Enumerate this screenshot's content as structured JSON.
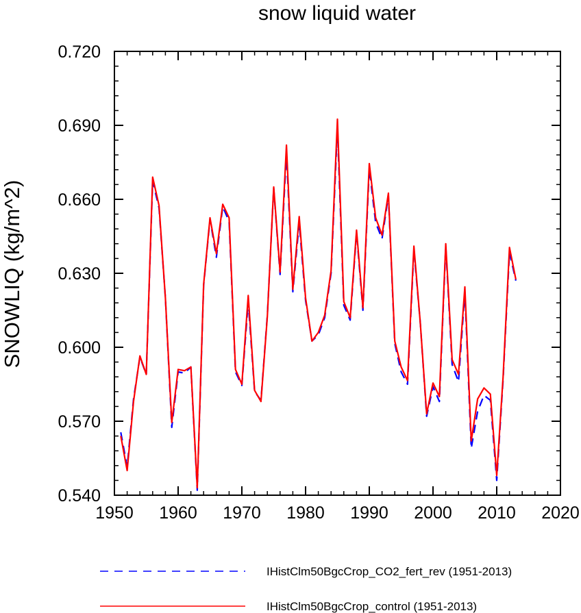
{
  "chart_data": {
    "type": "line",
    "title": "snow liquid water",
    "xlabel": "",
    "ylabel": "SNOWLIQ  (kg/m^2)",
    "xlim": [
      1950,
      2020
    ],
    "ylim": [
      0.54,
      0.72
    ],
    "x_ticks": [
      1950,
      1960,
      1970,
      1980,
      1990,
      2000,
      2010,
      2020
    ],
    "x_tick_labels": [
      "1950",
      "1960",
      "1970",
      "1980",
      "1990",
      "2000",
      "2010",
      "2020"
    ],
    "y_ticks": [
      0.54,
      0.57,
      0.6,
      0.63,
      0.66,
      0.69,
      0.72
    ],
    "y_tick_labels": [
      "0.540",
      "0.570",
      "0.600",
      "0.630",
      "0.660",
      "0.690",
      "0.720"
    ],
    "grid": false,
    "legend_position": "bottom",
    "x": [
      1951,
      1952,
      1953,
      1954,
      1955,
      1956,
      1957,
      1958,
      1959,
      1960,
      1961,
      1962,
      1963,
      1964,
      1965,
      1966,
      1967,
      1968,
      1969,
      1970,
      1971,
      1972,
      1973,
      1974,
      1975,
      1976,
      1977,
      1978,
      1979,
      1980,
      1981,
      1982,
      1983,
      1984,
      1985,
      1986,
      1987,
      1988,
      1989,
      1990,
      1991,
      1992,
      1993,
      1994,
      1995,
      1996,
      1997,
      1998,
      1999,
      2000,
      2001,
      2002,
      2003,
      2004,
      2005,
      2006,
      2007,
      2008,
      2009,
      2010,
      2011,
      2012,
      2013
    ],
    "series": [
      {
        "name": "IHistClm50BgcCrop_CO2_fert_rev (1951-2013)",
        "color": "#0000ff",
        "dash": "dashed",
        "values": [
          0.5655,
          0.5515,
          0.579,
          0.596,
          0.589,
          0.6675,
          0.6565,
          0.62,
          0.5675,
          0.59,
          0.5895,
          0.592,
          0.542,
          0.625,
          0.652,
          0.6365,
          0.657,
          0.651,
          0.59,
          0.5845,
          0.6185,
          0.582,
          0.5785,
          0.613,
          0.6645,
          0.6295,
          0.679,
          0.6225,
          0.6505,
          0.619,
          0.6025,
          0.605,
          0.612,
          0.63,
          0.689,
          0.617,
          0.611,
          0.6465,
          0.615,
          0.6725,
          0.6505,
          0.644,
          0.6615,
          0.6015,
          0.59,
          0.585,
          0.6395,
          0.61,
          0.572,
          0.584,
          0.578,
          0.641,
          0.593,
          0.586,
          0.6225,
          0.559,
          0.574,
          0.5805,
          0.5785,
          0.546,
          0.587,
          0.6385,
          0.627
        ]
      },
      {
        "name": "IHistClm50BgcCrop_control (1951-2013)",
        "color": "#ff0000",
        "dash": "solid",
        "values": [
          0.564,
          0.55,
          0.578,
          0.5965,
          0.589,
          0.669,
          0.6575,
          0.62,
          0.5695,
          0.591,
          0.5905,
          0.592,
          0.543,
          0.6255,
          0.6525,
          0.638,
          0.658,
          0.6525,
          0.591,
          0.585,
          0.621,
          0.5825,
          0.578,
          0.6125,
          0.665,
          0.6305,
          0.682,
          0.6235,
          0.653,
          0.62,
          0.6025,
          0.606,
          0.613,
          0.631,
          0.6925,
          0.6185,
          0.612,
          0.6475,
          0.616,
          0.6745,
          0.6525,
          0.6455,
          0.6625,
          0.6025,
          0.592,
          0.5865,
          0.641,
          0.61,
          0.573,
          0.5855,
          0.58,
          0.642,
          0.595,
          0.589,
          0.6245,
          0.562,
          0.579,
          0.5835,
          0.581,
          0.548,
          0.588,
          0.6405,
          0.6275
        ]
      }
    ]
  }
}
